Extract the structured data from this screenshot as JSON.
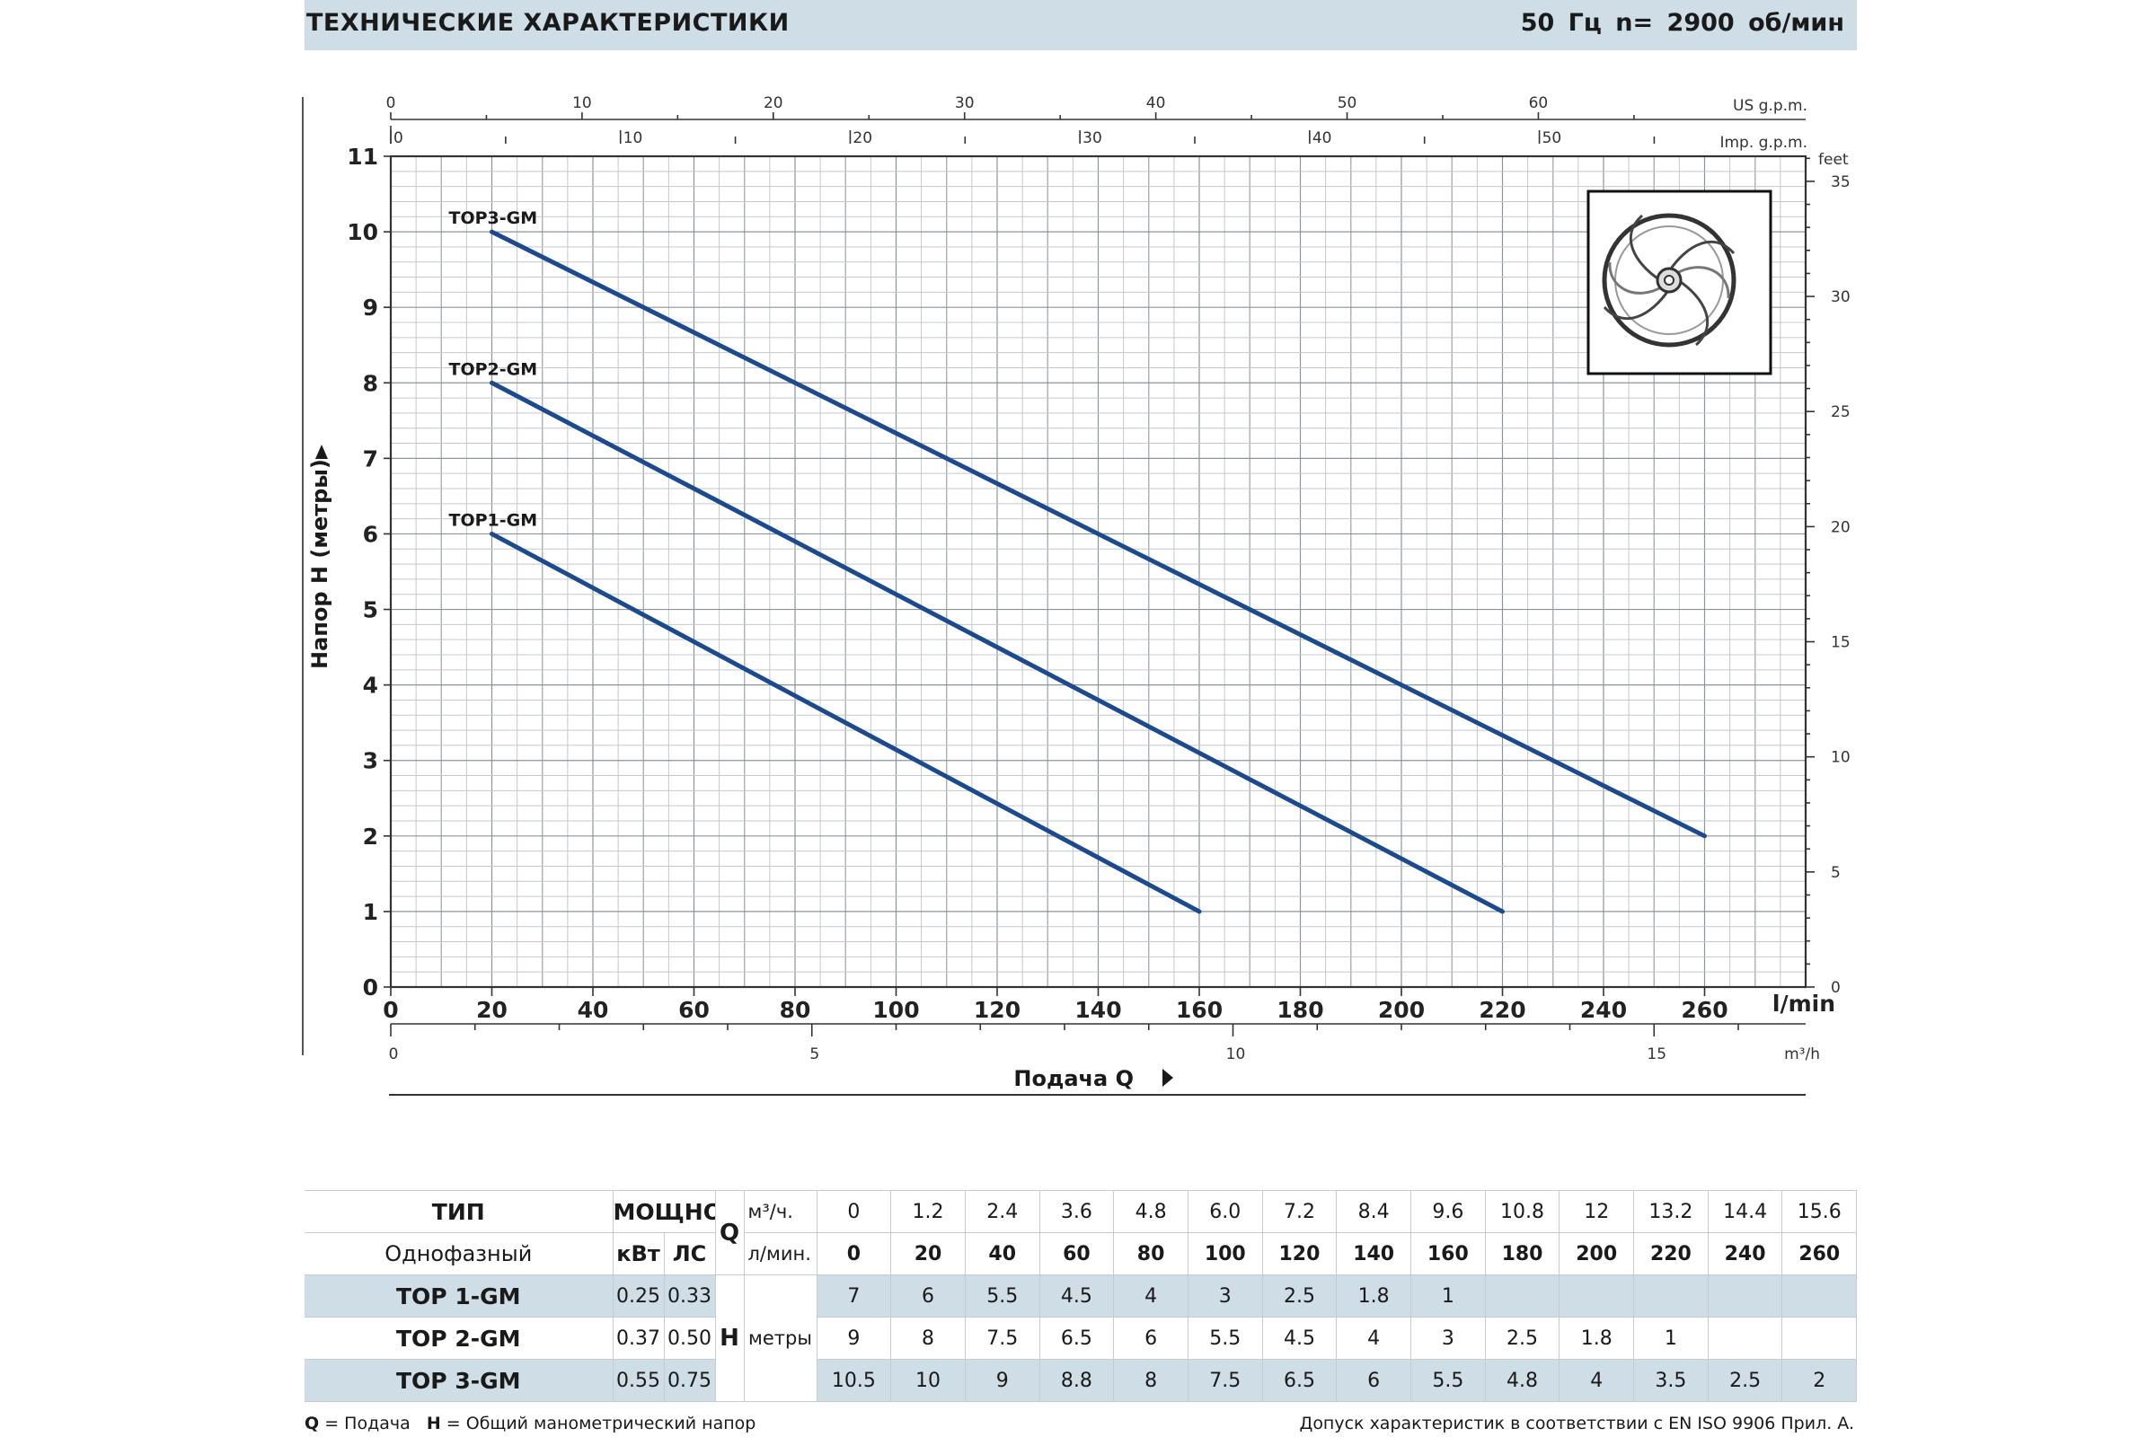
{
  "header": {
    "title": "ТЕХНИЧЕСКИЕ ХАРАКТЕРИСТИКИ",
    "frequency": "50 Гц   n= 2900  об/мин"
  },
  "chart_data": {
    "type": "line",
    "xlabel": "Подача Q",
    "ylabel": "Напор H (метры)",
    "x_unit": "l/min",
    "xlim": [
      0,
      280
    ],
    "ylim": [
      0,
      11
    ],
    "x_ticks": [
      0,
      20,
      40,
      60,
      80,
      100,
      120,
      140,
      160,
      180,
      200,
      220,
      240,
      260
    ],
    "y_ticks": [
      0,
      1,
      2,
      3,
      4,
      5,
      6,
      7,
      8,
      9,
      10,
      11
    ],
    "grid": true,
    "series": [
      {
        "name": "TOP1-GM",
        "x": [
          20,
          160
        ],
        "y": [
          6,
          1
        ]
      },
      {
        "name": "TOP2-GM",
        "x": [
          20,
          220
        ],
        "y": [
          8,
          1
        ]
      },
      {
        "name": "TOP3-GM",
        "x": [
          20,
          260
        ],
        "y": [
          10,
          2
        ]
      }
    ],
    "secondary_axes": {
      "us_gpm": {
        "unit": "US g.p.m.",
        "ticks": [
          0,
          10,
          20,
          30,
          40,
          50,
          60
        ]
      },
      "imp_gpm": {
        "unit": "Imp. g.p.m.",
        "ticks": [
          0,
          10,
          20,
          30,
          40,
          50
        ]
      },
      "m3h": {
        "unit": "m³/h",
        "ticks": [
          0,
          5,
          10,
          15
        ]
      },
      "feet": {
        "unit": "feet",
        "ticks": [
          0,
          5,
          10,
          15,
          20,
          25,
          30,
          35
        ]
      }
    },
    "impeller_icon": "impeller-icon"
  },
  "table": {
    "type_header": "ТИП",
    "type_sub": "Однофазный",
    "power_header": "МОЩНОСТЬ",
    "kw_label": "кВт",
    "hp_label": "ЛС",
    "q_symbol": "Q",
    "q_unit_m3h": "м³/ч.",
    "q_unit_lmin": "л/мин.",
    "h_symbol": "H",
    "h_unit": "метры",
    "q_m3h": [
      "0",
      "1.2",
      "2.4",
      "3.6",
      "4.8",
      "6.0",
      "7.2",
      "8.4",
      "9.6",
      "10.8",
      "12",
      "13.2",
      "14.4",
      "15.6"
    ],
    "q_lmin": [
      "0",
      "20",
      "40",
      "60",
      "80",
      "100",
      "120",
      "140",
      "160",
      "180",
      "200",
      "220",
      "240",
      "260"
    ],
    "models": [
      {
        "name": "TOP 1-GM",
        "kw": "0.25",
        "hp": "0.33",
        "h": [
          "7",
          "6",
          "5.5",
          "4.5",
          "4",
          "3",
          "2.5",
          "1.8",
          "1",
          "",
          "",
          "",
          "",
          ""
        ]
      },
      {
        "name": "TOP 2-GM",
        "kw": "0.37",
        "hp": "0.50",
        "h": [
          "9",
          "8",
          "7.5",
          "6.5",
          "6",
          "5.5",
          "4.5",
          "4",
          "3",
          "2.5",
          "1.8",
          "1",
          "",
          ""
        ]
      },
      {
        "name": "TOP 3-GM",
        "kw": "0.55",
        "hp": "0.75",
        "h": [
          "10.5",
          "10",
          "9",
          "8.8",
          "8",
          "7.5",
          "6.5",
          "6",
          "5.5",
          "4.8",
          "4",
          "3.5",
          "2.5",
          "2"
        ]
      }
    ]
  },
  "footer": {
    "q_key": "Q",
    "q_text": " = Подача   ",
    "h_key": "H",
    "h_text": " = Общий манометрический напор",
    "right": "Допуск характеристик в соответствии с EN ISO 9906 Прил. A."
  }
}
